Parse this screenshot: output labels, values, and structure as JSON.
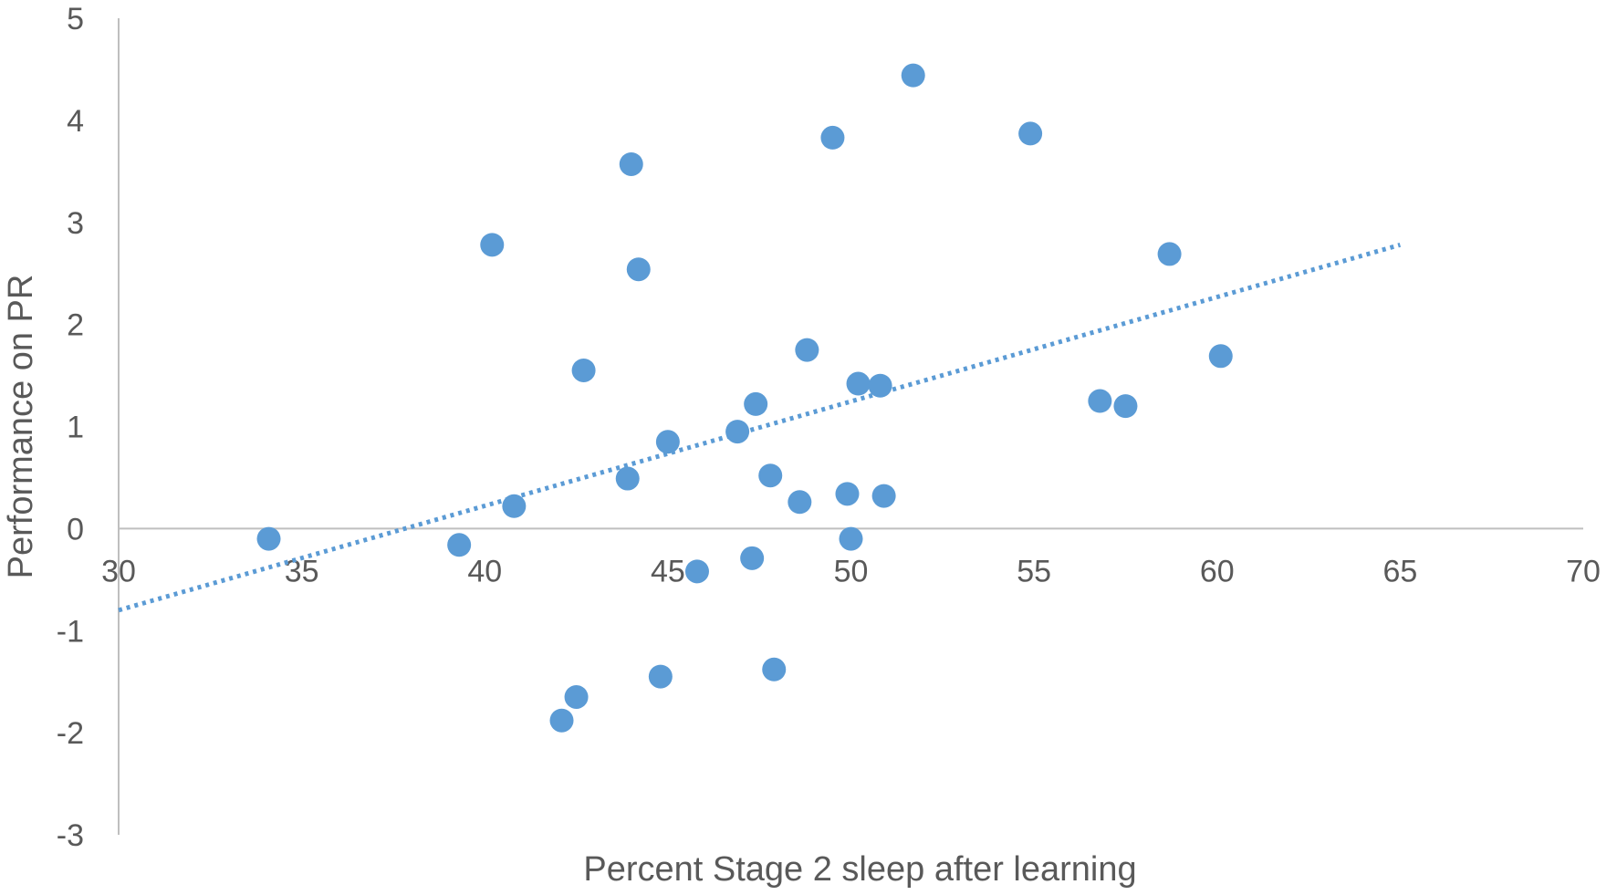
{
  "chart_data": {
    "type": "scatter",
    "title": "",
    "xlabel": "Percent Stage 2 sleep after learning",
    "ylabel": "Performance on PR",
    "xlim": [
      30,
      70
    ],
    "ylim": [
      -3,
      5
    ],
    "x_ticks": [
      30,
      35,
      40,
      45,
      50,
      55,
      60,
      65,
      70
    ],
    "y_ticks": [
      -3,
      -2,
      -1,
      0,
      1,
      2,
      3,
      4,
      5
    ],
    "grid": false,
    "legend": "none",
    "x_axis_crosses_at_y": 0,
    "marker_color": "#5b9bd5",
    "series": [
      {
        "points": [
          {
            "x": 34.1,
            "y": -0.1
          },
          {
            "x": 39.3,
            "y": -0.16
          },
          {
            "x": 40.2,
            "y": 2.78
          },
          {
            "x": 40.8,
            "y": 0.22
          },
          {
            "x": 42.1,
            "y": -1.88
          },
          {
            "x": 42.5,
            "y": -1.65
          },
          {
            "x": 42.7,
            "y": 1.55
          },
          {
            "x": 43.9,
            "y": 0.49
          },
          {
            "x": 44.0,
            "y": 3.57
          },
          {
            "x": 44.2,
            "y": 2.54
          },
          {
            "x": 44.8,
            "y": -1.45
          },
          {
            "x": 45.0,
            "y": 0.85
          },
          {
            "x": 45.8,
            "y": -0.42
          },
          {
            "x": 46.9,
            "y": 0.95
          },
          {
            "x": 47.3,
            "y": -0.29
          },
          {
            "x": 47.4,
            "y": 1.22
          },
          {
            "x": 47.8,
            "y": 0.52
          },
          {
            "x": 47.9,
            "y": -1.38
          },
          {
            "x": 48.6,
            "y": 0.26
          },
          {
            "x": 48.8,
            "y": 1.75
          },
          {
            "x": 49.5,
            "y": 3.83
          },
          {
            "x": 49.9,
            "y": 0.34
          },
          {
            "x": 50.0,
            "y": -0.1
          },
          {
            "x": 50.2,
            "y": 1.42
          },
          {
            "x": 50.8,
            "y": 1.4
          },
          {
            "x": 50.9,
            "y": 0.32
          },
          {
            "x": 51.7,
            "y": 4.44
          },
          {
            "x": 54.9,
            "y": 3.87
          },
          {
            "x": 56.8,
            "y": 1.25
          },
          {
            "x": 57.5,
            "y": 1.2
          },
          {
            "x": 58.7,
            "y": 2.69
          },
          {
            "x": 60.1,
            "y": 1.69
          }
        ]
      }
    ],
    "trendline": {
      "style": "dotted",
      "kind": "linear",
      "color": "#5b9bd5",
      "x_range": [
        30,
        65
      ],
      "y_range": [
        -0.8,
        2.78
      ]
    }
  }
}
